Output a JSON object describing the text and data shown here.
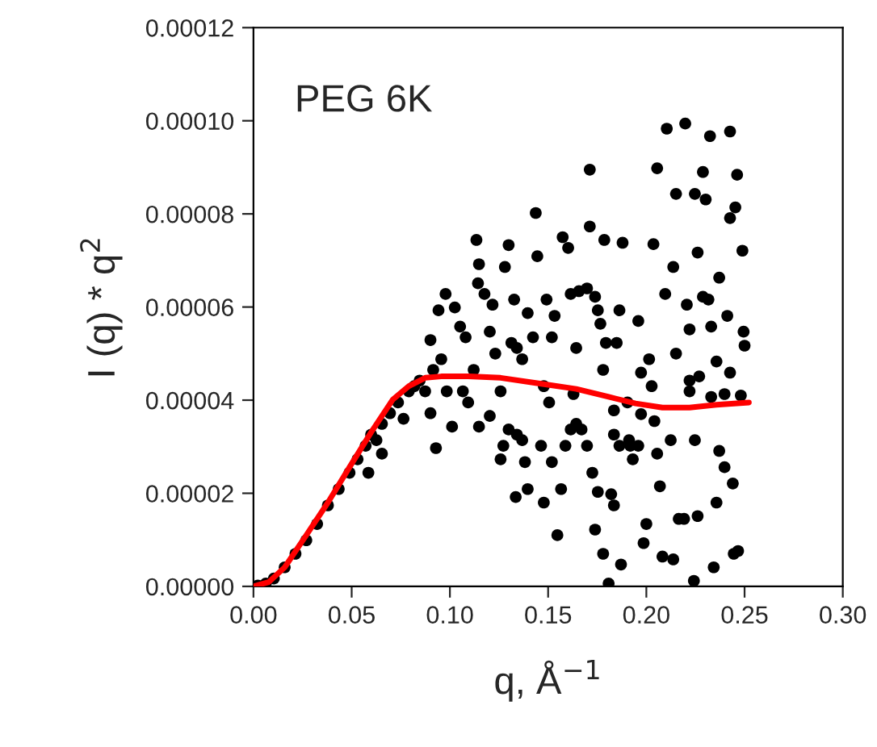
{
  "chart_data": {
    "type": "scatter",
    "xlabel": "q, Å$^{−1}$",
    "ylabel": "I (q) * q$^{2}$",
    "annotations": [
      "PEG 6K"
    ],
    "xlim": [
      0,
      0.3
    ],
    "xticks": [
      {
        "value": 0,
        "label": "0.00"
      },
      {
        "value": 0.05,
        "label": "0.05"
      },
      {
        "value": 0.1,
        "label": "0.10"
      },
      {
        "value": 0.15,
        "label": "0.15"
      },
      {
        "value": 0.2,
        "label": "0.20"
      },
      {
        "value": 0.25,
        "label": "0.25"
      },
      {
        "value": 0.3,
        "label": "0.30"
      }
    ],
    "ylim": [
      0,
      0.00012
    ],
    "yticks": [
      {
        "value": 0,
        "label": "0.00000"
      },
      {
        "value": 2e-05,
        "label": "0.00002"
      },
      {
        "value": 4e-05,
        "label": "0.00004"
      },
      {
        "value": 6e-05,
        "label": "0.00006"
      },
      {
        "value": 8e-05,
        "label": "0.00008"
      },
      {
        "value": 0.0001,
        "label": "0.00010"
      },
      {
        "value": 0.00012,
        "label": "0.00012"
      }
    ],
    "grid": false,
    "legend": false,
    "series": [
      {
        "color": "#000000",
        "marker": "circle",
        "x": [
          0.0022,
          0.0063,
          0.0104,
          0.0159,
          0.0214,
          0.0269,
          0.0324,
          0.0379,
          0.0434,
          0.0489,
          0.053,
          0.0571,
          0.0599,
          0.0626,
          0.0654,
          0.0585,
          0.0654,
          0.0695,
          0.0736,
          0.0764,
          0.0791,
          0.0819,
          0.0846,
          0.0874,
          0.0901,
          0.0929,
          0.0915,
          0.0956,
          0.0984,
          0.1011,
          0.0901,
          0.0942,
          0.0978,
          0.1025,
          0.1052,
          0.108,
          0.1066,
          0.1093,
          0.1121,
          0.1148,
          0.1135,
          0.1143,
          0.1176,
          0.1203,
          0.1217,
          0.1231,
          0.1148,
          0.1203,
          0.1258,
          0.128,
          0.1299,
          0.1313,
          0.1327,
          0.1341,
          0.1368,
          0.1396,
          0.1423,
          0.1437,
          0.1445,
          0.1272,
          0.1258,
          0.1299,
          0.1341,
          0.1368,
          0.1382,
          0.1335,
          0.1396,
          0.1478,
          0.1464,
          0.1519,
          0.1547,
          0.1566,
          0.1505,
          0.1478,
          0.1519,
          0.1492,
          0.1533,
          0.1574,
          0.1602,
          0.1615,
          0.1657,
          0.1698,
          0.1739,
          0.1643,
          0.1629,
          0.1588,
          0.1615,
          0.1643,
          0.167,
          0.1698,
          0.1712,
          0.1712,
          0.1753,
          0.1766,
          0.178,
          0.1794,
          0.1786,
          0.1725,
          0.1739,
          0.1753,
          0.178,
          0.1808,
          0.1821,
          0.1835,
          0.1835,
          0.1835,
          0.1849,
          0.1863,
          0.1879,
          0.1871,
          0.1904,
          0.1918,
          0.1931,
          0.1959,
          0.1973,
          0.1986,
          0.2,
          0.2014,
          0.2027,
          0.2041,
          0.2036,
          0.2055,
          0.2069,
          0.2082,
          0.2096,
          0.2055,
          0.2137,
          0.2124,
          0.2151,
          0.2137,
          0.2151,
          0.2104,
          0.2198,
          0.2206,
          0.222,
          0.222,
          0.2165,
          0.2192,
          0.2242,
          0.2261,
          0.2247,
          0.2261,
          0.2247,
          0.2288,
          0.2302,
          0.2316,
          0.2324,
          0.233,
          0.233,
          0.2343,
          0.2357,
          0.2357,
          0.2371,
          0.2371,
          0.2398,
          0.2398,
          0.2412,
          0.2426,
          0.2426,
          0.2426,
          0.244,
          0.2445,
          0.2453,
          0.2462,
          0.2467,
          0.2481,
          0.2489,
          0.2495,
          0.25,
          0.222,
          0.2269,
          0.2288,
          0.1973,
          0.1863,
          0.1912,
          0.1959
        ],
        "values": [
          2e-07,
          6e-07,
          1.7e-06,
          4.1e-06,
          7e-06,
          9.9e-06,
          1.34e-05,
          1.74e-05,
          2.09e-05,
          2.44e-05,
          2.73e-05,
          3.02e-05,
          3.26e-05,
          3.14e-05,
          2.85e-05,
          2.44e-05,
          3.49e-05,
          3.72e-05,
          3.95e-05,
          3.6e-05,
          4.19e-05,
          4.3e-05,
          4.42e-05,
          4.19e-05,
          3.72e-05,
          2.97e-05,
          4.65e-05,
          4.88e-05,
          4.19e-05,
          3.43e-05,
          5.29e-05,
          5.93e-05,
          6.28e-05,
          5.99e-05,
          5.58e-05,
          5.35e-05,
          4.19e-05,
          3.95e-05,
          4.65e-05,
          6.92e-05,
          7.44e-05,
          6.51e-05,
          6.28e-05,
          5.47e-05,
          6.05e-05,
          5e-05,
          3.43e-05,
          3.66e-05,
          4.19e-05,
          6.86e-05,
          7.33e-05,
          5.23e-05,
          6.16e-05,
          5.12e-05,
          4.88e-05,
          5.87e-05,
          5.35e-05,
          8.02e-05,
          7.09e-05,
          3.02e-05,
          2.73e-05,
          3.37e-05,
          3.26e-05,
          3.14e-05,
          2.67e-05,
          1.92e-05,
          2.09e-05,
          1.8e-05,
          3.02e-05,
          2.67e-05,
          1.1e-05,
          2.09e-05,
          3.95e-05,
          4.3e-05,
          5.35e-05,
          6.16e-05,
          5.81e-05,
          7.5e-05,
          7.27e-05,
          6.28e-05,
          6.34e-05,
          6.4e-05,
          6.22e-05,
          5.12e-05,
          4.13e-05,
          3.02e-05,
          3.37e-05,
          3.49e-05,
          3.37e-05,
          3.02e-05,
          8.95e-05,
          7.73e-05,
          5.93e-05,
          5.64e-05,
          4.65e-05,
          5.23e-05,
          7.44e-05,
          2.44e-05,
          1.22e-05,
          2.03e-05,
          7e-06,
          6e-07,
          1.98e-05,
          1.74e-05,
          3.78e-05,
          3.26e-05,
          5.23e-05,
          5.93e-05,
          7.38e-05,
          4.7e-06,
          3.95e-05,
          3.02e-05,
          2.73e-05,
          5.7e-05,
          4.59e-05,
          9.3e-06,
          1.34e-05,
          4.88e-05,
          4.3e-05,
          3.55e-05,
          7.35e-05,
          2.85e-05,
          2.15e-05,
          6.4e-06,
          6.28e-05,
          8.98e-05,
          5.8e-06,
          3.14e-05,
          5e-05,
          6.86e-05,
          8.43e-05,
          9.83e-05,
          9.94e-05,
          6.05e-05,
          5.52e-05,
          4.42e-05,
          1.45e-05,
          1.45e-05,
          1.2e-06,
          1.51e-05,
          3.14e-05,
          7.17e-05,
          8.43e-05,
          8.9e-05,
          8.31e-05,
          6.16e-05,
          9.67e-05,
          5.58e-05,
          4.07e-05,
          4.1e-06,
          1.8e-05,
          4.83e-05,
          6.63e-05,
          2.91e-05,
          2.56e-05,
          4.13e-05,
          5.81e-05,
          9.77e-05,
          7.91e-05,
          4.59e-05,
          2.21e-05,
          7e-06,
          8.14e-05,
          8.84e-05,
          7.6e-06,
          4.1e-05,
          7.21e-05,
          5.47e-05,
          5.17e-05,
          4.19e-05,
          4.51e-05,
          6.22e-05,
          3.7e-05,
          3.02e-05,
          3.14e-05,
          3.02e-05
        ]
      },
      {
        "type": "line",
        "color": "#ff0000",
        "marker": "none",
        "line_style": "solid",
        "x": [
          0,
          0.0077,
          0.0159,
          0.0269,
          0.0379,
          0.0489,
          0.0599,
          0.0709,
          0.0791,
          0.0874,
          0.0956,
          0.1093,
          0.1258,
          0.1451,
          0.1643,
          0.1808,
          0.1945,
          0.2082,
          0.222,
          0.2357,
          0.2522
        ],
        "values": [
          0,
          9e-07,
          4.1e-06,
          1.1e-05,
          1.8e-05,
          2.56e-05,
          3.31e-05,
          4.01e-05,
          4.3e-05,
          4.48e-05,
          4.51e-05,
          4.51e-05,
          4.48e-05,
          4.36e-05,
          4.24e-05,
          4.07e-05,
          3.93e-05,
          3.84e-05,
          3.84e-05,
          3.9e-05,
          3.95e-05
        ]
      }
    ]
  }
}
